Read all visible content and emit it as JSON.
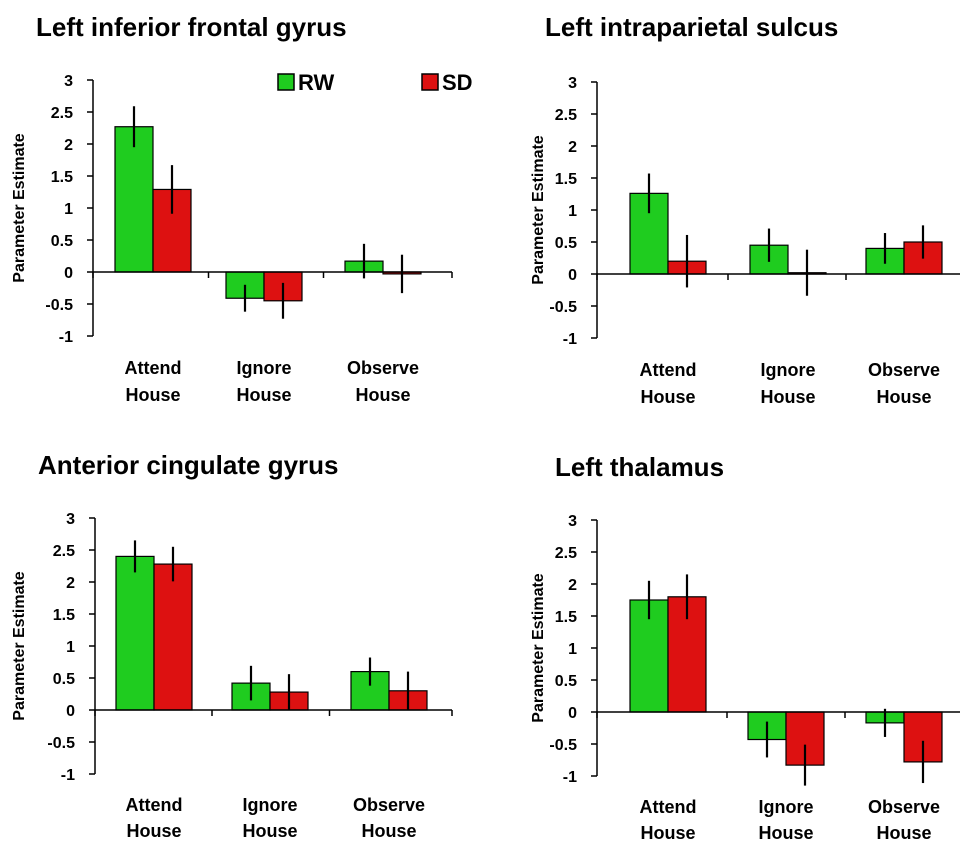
{
  "chart_data": [
    {
      "type": "bar",
      "title": "Left inferior frontal gyrus",
      "ylabel": "Parameter Estimate",
      "ylim": [
        -1,
        3
      ],
      "yticks": [
        "3",
        "2.5",
        "2",
        "1.5",
        "1",
        "0.5",
        "0",
        "-0.5",
        "-1"
      ],
      "categories": [
        [
          "Attend",
          "House"
        ],
        [
          "Ignore",
          "House"
        ],
        [
          "Observe",
          "House"
        ]
      ],
      "legend": {
        "position": "top",
        "entries": [
          "RW",
          "SD"
        ]
      },
      "series": [
        {
          "name": "RW",
          "color": "#1fcc1f",
          "values": [
            2.27,
            -0.41,
            0.17
          ],
          "errors": [
            0.32,
            0.21,
            0.27
          ]
        },
        {
          "name": "SD",
          "color": "#dd1111",
          "values": [
            1.29,
            -0.45,
            -0.03
          ],
          "errors": [
            0.38,
            0.28,
            0.3
          ]
        }
      ]
    },
    {
      "type": "bar",
      "title": "Left intraparietal sulcus",
      "ylabel": "Parameter Estimate",
      "ylim": [
        -1,
        3
      ],
      "yticks": [
        "3",
        "2.5",
        "2",
        "1.5",
        "1",
        "0.5",
        "0",
        "-0.5",
        "-1"
      ],
      "categories": [
        [
          "Attend",
          "House"
        ],
        [
          "Ignore",
          "House"
        ],
        [
          "Observe",
          "House"
        ]
      ],
      "series": [
        {
          "name": "RW",
          "color": "#1fcc1f",
          "values": [
            1.26,
            0.45,
            0.4
          ],
          "errors": [
            0.31,
            0.26,
            0.24
          ]
        },
        {
          "name": "SD",
          "color": "#dd1111",
          "values": [
            0.2,
            0.02,
            0.5
          ],
          "errors": [
            0.41,
            0.36,
            0.26
          ]
        }
      ]
    },
    {
      "type": "bar",
      "title": "Anterior cingulate gyrus",
      "ylabel": "Parameter Estimate",
      "ylim": [
        -1,
        3
      ],
      "yticks": [
        "3",
        "2.5",
        "2",
        "1.5",
        "1",
        "0.5",
        "0",
        "-0.5",
        "-1"
      ],
      "categories": [
        [
          "Attend",
          "House"
        ],
        [
          "Ignore",
          "House"
        ],
        [
          "Observe",
          "House"
        ]
      ],
      "series": [
        {
          "name": "RW",
          "color": "#1fcc1f",
          "values": [
            2.4,
            0.42,
            0.6
          ],
          "errors": [
            0.25,
            0.27,
            0.22
          ]
        },
        {
          "name": "SD",
          "color": "#dd1111",
          "values": [
            2.28,
            0.28,
            0.3
          ],
          "errors": [
            0.27,
            0.28,
            0.3
          ]
        }
      ]
    },
    {
      "type": "bar",
      "title": "Left thalamus",
      "ylabel": "Parameter Estimate",
      "ylim": [
        -1,
        3
      ],
      "yticks": [
        "3",
        "2.5",
        "2",
        "1.5",
        "1",
        "0.5",
        "0",
        "-0.5",
        "-1"
      ],
      "categories": [
        [
          "Attend",
          "House"
        ],
        [
          "Ignore",
          "House"
        ],
        [
          "Observe",
          "House"
        ]
      ],
      "series": [
        {
          "name": "RW",
          "color": "#1fcc1f",
          "values": [
            1.75,
            -0.43,
            -0.17
          ],
          "errors": [
            0.3,
            0.28,
            0.22
          ]
        },
        {
          "name": "SD",
          "color": "#dd1111",
          "values": [
            1.8,
            -0.83,
            -0.78
          ],
          "errors": [
            0.35,
            0.32,
            0.33
          ]
        }
      ]
    }
  ]
}
